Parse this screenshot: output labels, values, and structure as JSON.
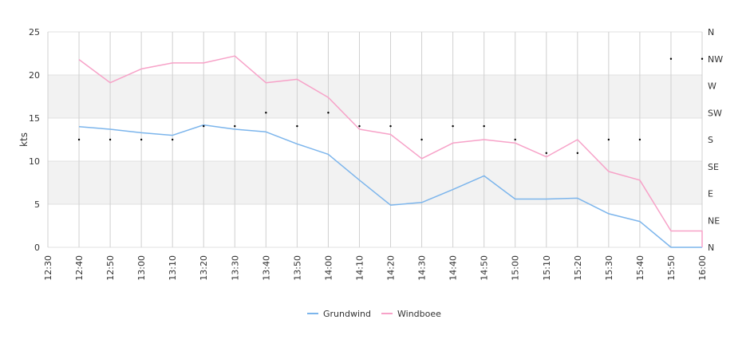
{
  "chart_data": {
    "type": "line",
    "title": "",
    "ylabel": "kts",
    "ylim": [
      0,
      25
    ],
    "y_ticks": [
      "0",
      "5",
      "10",
      "15",
      "20",
      "25"
    ],
    "x_ticks": [
      "12:30",
      "12:40",
      "12:50",
      "13:00",
      "13:10",
      "13:20",
      "13:30",
      "13:40",
      "13:50",
      "14:00",
      "14:10",
      "14:20",
      "14:30",
      "14:40",
      "14:50",
      "15:00",
      "15:10",
      "15:20",
      "15:30",
      "15:40",
      "15:50",
      "16:00"
    ],
    "right_axis": {
      "type": "wind-direction",
      "ticks": [
        "N",
        "NE",
        "E",
        "SE",
        "S",
        "SW",
        "W",
        "NW",
        "N"
      ],
      "range_degrees": [
        0,
        360
      ]
    },
    "grid": true,
    "banded_background": true,
    "legend_position": "bottom-center",
    "series": [
      {
        "name": "Grundwind",
        "color": "#7cb5ec",
        "x": [
          "12:40",
          "12:50",
          "13:00",
          "13:10",
          "13:20",
          "13:30",
          "13:40",
          "13:50",
          "14:00",
          "14:10",
          "14:20",
          "14:30",
          "14:40",
          "14:50",
          "15:00",
          "15:10",
          "15:20",
          "15:30",
          "15:40",
          "15:50",
          "16:00"
        ],
        "values": [
          14.0,
          13.7,
          13.3,
          13.0,
          14.2,
          13.7,
          13.4,
          12.0,
          10.8,
          7.8,
          4.9,
          5.2,
          6.7,
          8.3,
          5.6,
          5.6,
          5.7,
          3.9,
          3.0,
          0.0,
          0.0
        ]
      },
      {
        "name": "Windboee",
        "color": "#f7a2c8",
        "x": [
          "12:40",
          "12:50",
          "13:00",
          "13:10",
          "13:20",
          "13:30",
          "13:40",
          "13:50",
          "14:00",
          "14:10",
          "14:20",
          "14:30",
          "14:40",
          "14:50",
          "15:00",
          "15:10",
          "15:20",
          "15:30",
          "15:40",
          "15:50",
          "16:00"
        ],
        "values": [
          21.8,
          19.1,
          20.7,
          21.4,
          21.4,
          22.2,
          19.1,
          19.5,
          17.4,
          13.7,
          13.1,
          10.3,
          12.1,
          12.5,
          12.1,
          10.5,
          12.5,
          8.8,
          7.8,
          1.9,
          1.9
        ],
        "end_drop": 0.0
      },
      {
        "name": "Direction",
        "color": "#000000",
        "marker": "dot",
        "x": [
          "12:40",
          "12:50",
          "13:00",
          "13:10",
          "13:20",
          "13:30",
          "13:40",
          "13:50",
          "14:00",
          "14:10",
          "14:20",
          "14:30",
          "14:40",
          "14:50",
          "15:00",
          "15:10",
          "15:20",
          "15:30",
          "15:40",
          "15:50",
          "16:00"
        ],
        "degrees": [
          180,
          180,
          180,
          180,
          202.5,
          202.5,
          225,
          202.5,
          225,
          202.5,
          202.5,
          180,
          202.5,
          202.5,
          180,
          157.5,
          157.5,
          180,
          180,
          315,
          315
        ]
      }
    ],
    "legend": [
      {
        "label": "Grundwind",
        "color": "#7cb5ec"
      },
      {
        "label": "Windboee",
        "color": "#f7a2c8"
      }
    ]
  }
}
